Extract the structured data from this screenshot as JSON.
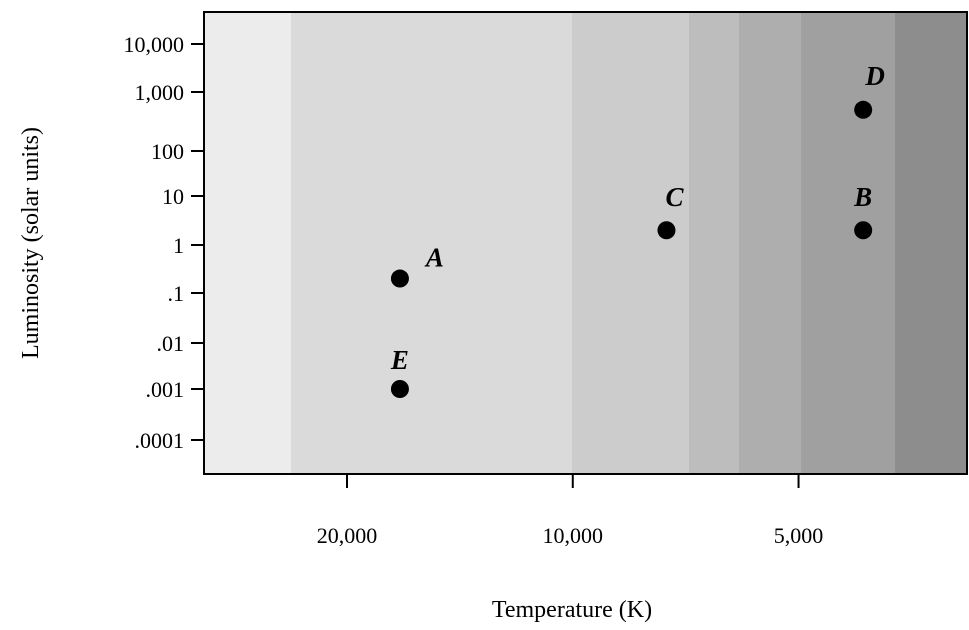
{
  "chart_data": {
    "type": "scatter",
    "title": "",
    "xlabel": "Temperature (K)",
    "ylabel": "Luminosity (solar units)",
    "x_scale": "log",
    "x_reversed": true,
    "y_scale": "log",
    "x_ticks": [
      {
        "value": 20000,
        "label": "20,000"
      },
      {
        "value": 10000,
        "label": "10,000"
      },
      {
        "value": 5000,
        "label": "5,000"
      }
    ],
    "y_ticks": [
      {
        "value": 10000,
        "label": "10,000"
      },
      {
        "value": 1000,
        "label": "1,000"
      },
      {
        "value": 100,
        "label": "100"
      },
      {
        "value": 10,
        "label": "10"
      },
      {
        "value": 1,
        "label": "1"
      },
      {
        "value": 0.1,
        "label": ".1"
      },
      {
        "value": 0.01,
        "label": ".01"
      },
      {
        "value": 0.001,
        "label": ".001"
      },
      {
        "value": 0.0001,
        "label": ".0001"
      }
    ],
    "points": [
      {
        "label": "A",
        "temperature": 17000,
        "luminosity": 0.2
      },
      {
        "label": "B",
        "temperature": 4100,
        "luminosity": 2
      },
      {
        "label": "C",
        "temperature": 7500,
        "luminosity": 2
      },
      {
        "label": "D",
        "temperature": 4100,
        "luminosity": 500
      },
      {
        "label": "E",
        "temperature": 17000,
        "luminosity": 0.001
      }
    ],
    "background_bands": [
      {
        "color": "#ececec"
      },
      {
        "color": "#dadada"
      },
      {
        "color": "#cccccc"
      },
      {
        "color": "#bdbdbd"
      },
      {
        "color": "#aeaeae"
      },
      {
        "color": "#a0a0a0"
      },
      {
        "color": "#8d8d8d"
      }
    ]
  }
}
